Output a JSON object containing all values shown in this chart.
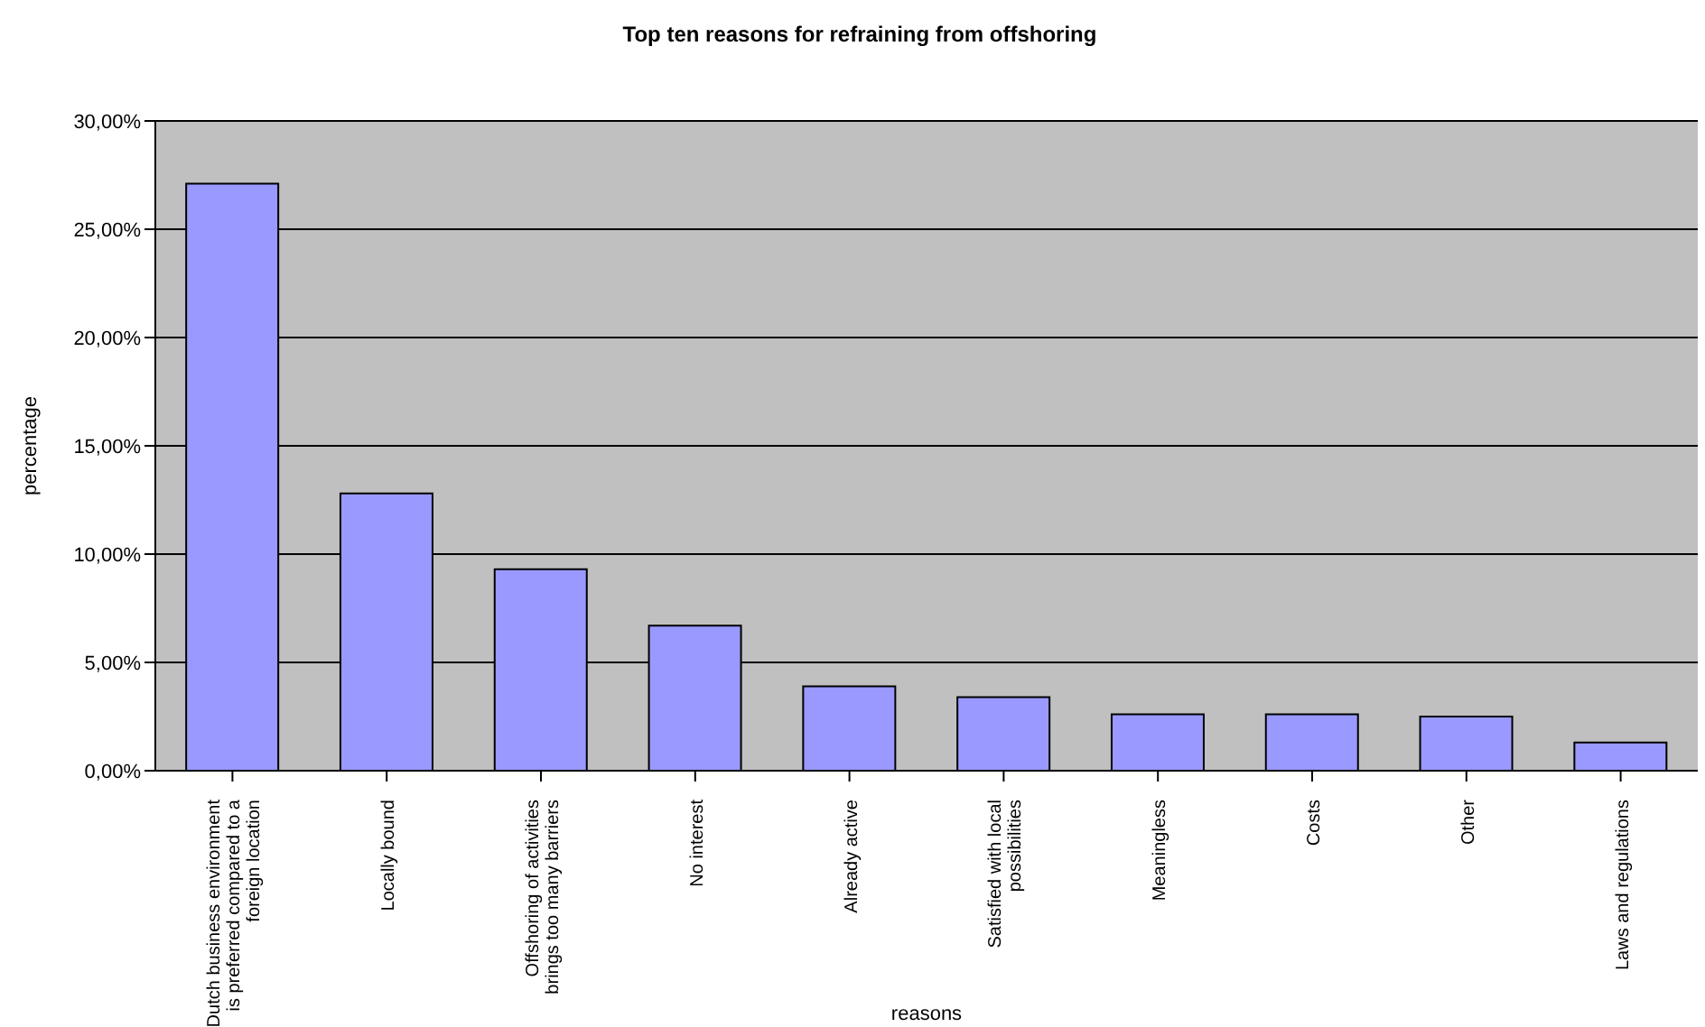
{
  "chart_data": {
    "type": "bar",
    "title": "Top ten reasons for refraining from offshoring",
    "xlabel": "reasons",
    "ylabel": "percentage",
    "categories": [
      "Dutch business environment is preferred compared to a foreign location",
      "Locally bound",
      "Offshoring of activities brings too many barriers",
      "No interest",
      "Already active",
      "Satisfied with local possibilities",
      "Meaningless",
      "Costs",
      "Other",
      "Laws and regulations"
    ],
    "values": [
      27.1,
      12.8,
      9.3,
      6.7,
      3.9,
      3.4,
      2.6,
      2.6,
      2.5,
      1.3
    ],
    "color": "#9999ff",
    "ylim": [
      0,
      30
    ],
    "yticks": [
      {
        "value": 0,
        "label": "0,00%"
      },
      {
        "value": 5,
        "label": "5,00%"
      },
      {
        "value": 10,
        "label": "10,00%"
      },
      {
        "value": 15,
        "label": "15,00%"
      },
      {
        "value": 20,
        "label": "20,00%"
      },
      {
        "value": 25,
        "label": "25,00%"
      },
      {
        "value": 30,
        "label": "30,00%"
      }
    ],
    "grid": "y"
  }
}
